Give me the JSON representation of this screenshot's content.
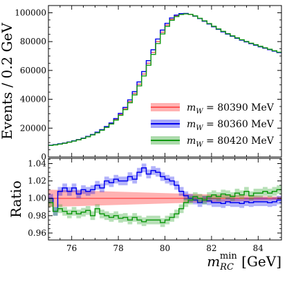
{
  "chart_data": [
    {
      "type": "line",
      "panel": "main",
      "ylabel": "Events / 0.2 GeV",
      "xlim": [
        75,
        85
      ],
      "ylim": [
        0,
        105000
      ],
      "yticks": [
        0,
        20000,
        40000,
        60000,
        80000,
        100000
      ],
      "ytick_labels": [
        "0",
        "20000",
        "40000",
        "60000",
        "80000",
        "100000"
      ],
      "grid": false,
      "legend_position": "lower-right",
      "legend": [
        {
          "m": "m",
          "sub": "W",
          "eq": " = 80390 MeV",
          "color": "#ff5555",
          "style": "band"
        },
        {
          "m": "m",
          "sub": "W",
          "eq": " = 80360 MeV",
          "color": "#0000ee",
          "style": "line-band"
        },
        {
          "m": "m",
          "sub": "W",
          "eq": " = 80420 MeV",
          "color": "#119911",
          "style": "line-band"
        }
      ],
      "x": [
        75.0,
        75.2,
        75.4,
        75.6,
        75.8,
        76.0,
        76.2,
        76.4,
        76.6,
        76.8,
        77.0,
        77.2,
        77.4,
        77.6,
        77.8,
        78.0,
        78.2,
        78.4,
        78.6,
        78.8,
        79.0,
        79.2,
        79.4,
        79.6,
        79.8,
        80.0,
        80.2,
        80.4,
        80.6,
        80.8,
        81.0,
        81.2,
        81.4,
        81.6,
        81.8,
        82.0,
        82.2,
        82.4,
        82.6,
        82.8,
        83.0,
        83.2,
        83.4,
        83.6,
        83.8,
        84.0,
        84.2,
        84.4,
        84.6,
        84.8
      ],
      "series": [
        {
          "values": [
            8100,
            8500,
            9000,
            9600,
            10300,
            11100,
            12000,
            13000,
            14200,
            15500,
            17000,
            18800,
            20800,
            23200,
            26000,
            29500,
            33500,
            38500,
            44000,
            50500,
            57500,
            65000,
            72500,
            80000,
            86500,
            91500,
            95500,
            97800,
            99000,
            99300,
            98800,
            97600,
            96000,
            94200,
            92300,
            90400,
            88600,
            86900,
            85300,
            83800,
            82400,
            81100,
            79900,
            78700,
            77600,
            76500,
            75500,
            74500,
            73500,
            72500
          ],
          "color": "#ff5555"
        },
        {
          "values": [
            8200,
            8600,
            9100,
            9700,
            10400,
            11200,
            12100,
            13100,
            14300,
            15600,
            17200,
            19000,
            21100,
            23600,
            26600,
            30200,
            34400,
            39600,
            45300,
            52000,
            59200,
            66800,
            74300,
            81800,
            88000,
            92700,
            96400,
            98400,
            99400,
            99500,
            98900,
            97600,
            96000,
            94100,
            92200,
            90300,
            88500,
            86800,
            85200,
            83700,
            82300,
            81000,
            79800,
            78600,
            77500,
            76400,
            75400,
            74400,
            73400,
            72400
          ],
          "color": "#0000ee"
        },
        {
          "values": [
            8000,
            8400,
            8900,
            9500,
            10200,
            11000,
            11900,
            12850,
            14000,
            15300,
            16750,
            18550,
            20500,
            22850,
            25550,
            28900,
            32800,
            37650,
            43000,
            49300,
            56200,
            63600,
            71100,
            78700,
            85300,
            90500,
            94800,
            97400,
            98800,
            99200,
            98900,
            97800,
            96200,
            94400,
            92500,
            90600,
            88800,
            87100,
            85500,
            84000,
            82600,
            81300,
            80100,
            78900,
            77800,
            76700,
            75700,
            74700,
            73700,
            72700
          ],
          "color": "#119911"
        }
      ]
    },
    {
      "type": "line",
      "panel": "ratio",
      "ylabel": "Ratio",
      "xlabel_main": "m",
      "xlabel_sub": "RC",
      "xlabel_sup": "min",
      "xlabel_unit": " [GeV]",
      "xlim": [
        75,
        85
      ],
      "ylim": [
        0.952,
        1.046
      ],
      "xticks": [
        76,
        78,
        80,
        82,
        84
      ],
      "xtick_labels": [
        "76",
        "78",
        "80",
        "82",
        "84"
      ],
      "yticks": [
        0.96,
        0.98,
        1.0,
        1.02,
        1.04
      ],
      "ytick_labels": [
        "0.96",
        "0.98",
        "1.00",
        "1.02",
        "1.04"
      ],
      "x": [
        75.0,
        75.2,
        75.4,
        75.6,
        75.8,
        76.0,
        76.2,
        76.4,
        76.6,
        76.8,
        77.0,
        77.2,
        77.4,
        77.6,
        77.8,
        78.0,
        78.2,
        78.4,
        78.6,
        78.8,
        79.0,
        79.2,
        79.4,
        79.6,
        79.8,
        80.0,
        80.2,
        80.4,
        80.6,
        80.8,
        81.0,
        81.2,
        81.4,
        81.6,
        81.8,
        82.0,
        82.2,
        82.4,
        82.6,
        82.8,
        83.0,
        83.2,
        83.4,
        83.6,
        83.8,
        84.0,
        84.2,
        84.4,
        84.6,
        84.8
      ],
      "reference_band": {
        "color": "#ff5555",
        "half_width_start": 0.01,
        "half_width_end": 0.002
      },
      "series": [
        {
          "values": [
            1.0,
            0.985,
            1.008,
            1.012,
            1.008,
            1.012,
            1.005,
            1.01,
            1.008,
            1.01,
            1.015,
            1.012,
            1.02,
            1.018,
            1.022,
            1.02,
            1.02,
            1.025,
            1.022,
            1.03,
            1.035,
            1.028,
            1.032,
            1.03,
            1.025,
            1.022,
            1.02,
            1.015,
            1.008,
            1.003,
            1.0,
            0.998,
            0.995,
            0.998,
            0.997,
            0.995,
            0.995,
            0.994,
            0.996,
            0.995,
            0.995,
            0.994,
            0.996,
            0.995,
            0.996,
            0.996,
            0.996,
            0.995,
            0.996,
            0.998
          ],
          "color": "#0000ee",
          "band_half_width": 0.005
        },
        {
          "values": [
            0.995,
            0.985,
            0.988,
            0.985,
            0.982,
            0.985,
            0.982,
            0.984,
            0.986,
            0.98,
            0.988,
            0.982,
            0.98,
            0.978,
            0.98,
            0.977,
            0.978,
            0.975,
            0.978,
            0.975,
            0.973,
            0.975,
            0.975,
            0.975,
            0.972,
            0.975,
            0.978,
            0.982,
            0.988,
            0.995,
            0.998,
            1.002,
            1.0,
            0.998,
            1.002,
            1.004,
            1.002,
            1.005,
            1.004,
            1.002,
            1.006,
            1.004,
            1.008,
            1.003,
            1.006,
            1.006,
            1.008,
            1.006,
            1.008,
            1.01
          ],
          "color": "#119911",
          "band_half_width": 0.005
        }
      ]
    }
  ]
}
